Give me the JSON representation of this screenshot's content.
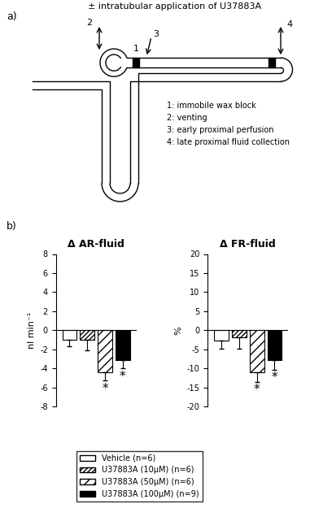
{
  "diagram": {
    "panel_label": "a)",
    "title": "± intratubular application of U37883A",
    "markers": [
      "1",
      "2",
      "3",
      "4"
    ],
    "key": [
      "1: immobile wax block",
      "2: venting",
      "3: early proximal perfusion",
      "4: late proximal fluid collection"
    ]
  },
  "panel_label": "b)",
  "legend": "lower center",
  "chart_data": [
    {
      "type": "bar",
      "title": "Δ AR-fluid",
      "y_label": "nl min⁻¹",
      "categories": [
        null
      ],
      "ylim": [
        -8,
        8
      ],
      "yticks": [
        -8,
        -6,
        -4,
        -2,
        0,
        2,
        4,
        6,
        8
      ],
      "series": [
        {
          "name": "Vehicle (n=6)",
          "color": "#ffffff",
          "values": [
            -1.0
          ],
          "errors": [
            0.7
          ]
        },
        {
          "name": "U37883A (10µM) (n=6)",
          "color": "#ffffff",
          "values": [
            -1.0
          ],
          "errors": [
            1.1
          ]
        },
        {
          "name": "U37883A (50µM) (n=6)",
          "color": "#ffffff",
          "values": [
            -4.4
          ],
          "errors": [
            0.9
          ]
        },
        {
          "name": "U37883A (100µM) (n=9)",
          "color": "#000000",
          "values": [
            -3.1
          ],
          "errors": [
            0.9
          ]
        }
      ],
      "annotations": [
        {
          "text": "*",
          "series": "U37883A (50µM) (n=6)"
        },
        {
          "text": "*",
          "series": "U37883A (100µM) (n=9)"
        }
      ]
    },
    {
      "type": "bar",
      "title": "Δ FR-fluid",
      "y_label": "%",
      "categories": [
        null
      ],
      "ylim": [
        -20,
        20
      ],
      "yticks": [
        -20,
        -15,
        -10,
        -5,
        0,
        5,
        10,
        15,
        20
      ],
      "series": [
        {
          "name": "Vehicle (n=6)",
          "color": "#ffffff",
          "values": [
            -2.8
          ],
          "errors": [
            2.0
          ]
        },
        {
          "name": "U37883A (10µM) (n=6)",
          "color": "#ffffff",
          "values": [
            -1.8
          ],
          "errors": [
            3.0
          ]
        },
        {
          "name": "U37883A (50µM) (n=6)",
          "color": "#ffffff",
          "values": [
            -11.0
          ],
          "errors": [
            2.5
          ]
        },
        {
          "name": "U37883A (100µM) (n=9)",
          "color": "#000000",
          "values": [
            -7.8
          ],
          "errors": [
            2.5
          ]
        }
      ],
      "annotations": [
        {
          "text": "*",
          "series": "U37883A (50µM) (n=6)"
        },
        {
          "text": "*",
          "series": "U37883A (100µM) (n=9)"
        }
      ]
    }
  ]
}
